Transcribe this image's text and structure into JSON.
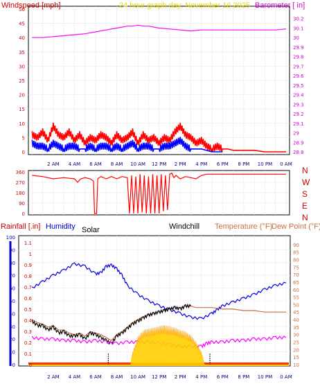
{
  "chart_data": [
    {
      "type": "line",
      "panel": "wind-baro",
      "title": "24 hour graph day:  November 16 2025",
      "left_label": "Windspeed [mph]",
      "right_label": "Barometer [ in]",
      "x_ticks": [
        "2 AM",
        "4 AM",
        "6 AM",
        "8 AM",
        "10 AM",
        "12 PM",
        "2 PM",
        "4 PM",
        "6 PM",
        "8 PM",
        "10 PM",
        "0 AM"
      ],
      "y_left_ticks": [
        "0",
        "5",
        "10",
        "15",
        "20",
        "25",
        "30",
        "35",
        "40",
        "45",
        "50"
      ],
      "y_left_range": [
        0,
        50
      ],
      "y_right_ticks": [
        "28.8",
        "28.9",
        "29",
        "29.1",
        "29.2",
        "29.3",
        "29.4",
        "29.5",
        "29.6",
        "29.7",
        "29.8",
        "29.9",
        "30",
        "30.1",
        "30.2"
      ],
      "y_right_range": [
        28.8,
        30.3
      ],
      "series": [
        {
          "name": "Barometer",
          "axis": "right",
          "color": "#ff00ff",
          "x": [
            0,
            1,
            2,
            3,
            4,
            5,
            6,
            7,
            8,
            8.5,
            9,
            9.5,
            10,
            10.5,
            11,
            12,
            13,
            14,
            15,
            16,
            17,
            18,
            19,
            20,
            21,
            22,
            23,
            24
          ],
          "y": [
            30.0,
            30.0,
            30.01,
            30.02,
            30.03,
            30.04,
            30.06,
            30.08,
            30.1,
            30.11,
            30.12,
            30.12,
            30.13,
            30.12,
            30.12,
            30.1,
            30.09,
            30.08,
            30.07,
            30.08,
            30.08,
            30.08,
            30.08,
            30.08,
            30.08,
            30.08,
            30.08,
            30.09
          ]
        },
        {
          "name": "Wind gust",
          "axis": "left",
          "color": "#ff0000",
          "x": [
            0,
            0.5,
            1,
            1.5,
            2,
            2.5,
            3,
            3.5,
            4,
            4.5,
            5,
            5.5,
            6,
            6.5,
            7,
            7.5,
            8,
            8.5,
            9,
            9.5,
            10,
            10.5,
            11,
            11.5,
            12,
            12.5,
            13,
            13.5,
            14,
            14.5,
            15,
            15.5,
            16,
            16.5,
            17,
            17.5,
            18,
            18.5,
            19,
            20,
            21,
            22,
            23,
            24
          ],
          "y": [
            6,
            5,
            7,
            4,
            9,
            6,
            5,
            7,
            4,
            6,
            3,
            5,
            4,
            6,
            5,
            3,
            6,
            4,
            5,
            7,
            3,
            6,
            4,
            5,
            3,
            5,
            4,
            7,
            9,
            6,
            5,
            3,
            4,
            2,
            1,
            2,
            1,
            1,
            0.5,
            0.5,
            0.5,
            0,
            0,
            0
          ]
        },
        {
          "name": "Windspeed",
          "axis": "left",
          "color": "#0000ff",
          "x": [
            0,
            0.5,
            1,
            1.5,
            2,
            2.5,
            3,
            3.5,
            4,
            4.5,
            5,
            5.5,
            6,
            6.5,
            7,
            7.5,
            8,
            8.5,
            9,
            9.5,
            10,
            10.5,
            11,
            11.5,
            12,
            12.5,
            13,
            13.5,
            14,
            14.5,
            15,
            15.5,
            16,
            16.5,
            17,
            17.5,
            18
          ],
          "y": [
            3,
            2,
            2,
            1,
            3,
            2,
            1,
            2,
            2,
            1,
            1,
            2,
            1,
            2,
            2,
            1,
            2,
            1,
            2,
            3,
            1,
            2,
            2,
            1,
            1,
            2,
            2,
            3,
            4,
            2,
            1,
            1,
            1,
            0.5,
            0,
            0,
            0
          ]
        }
      ]
    },
    {
      "type": "line",
      "panel": "wind-direction",
      "y_left_ticks": [
        "0",
        "90",
        "180",
        "270",
        "360"
      ],
      "y_range": [
        0,
        360
      ],
      "compass_labels": [
        "N",
        "W",
        "S",
        "E",
        "N"
      ],
      "series": [
        {
          "name": "Wind direction",
          "color": "#ff0000",
          "x": [
            0,
            1,
            2,
            3,
            4,
            4.3,
            4.6,
            5,
            5.5,
            5.8,
            5.9,
            6.1,
            6.2,
            6.5,
            7,
            7.5,
            8,
            8.5,
            9,
            9.2,
            9.4,
            9.6,
            9.8,
            10,
            10.2,
            10.4,
            10.6,
            10.8,
            11,
            11.2,
            11.4,
            11.6,
            11.8,
            12,
            12.2,
            12.4,
            12.6,
            12.8,
            13,
            13.2,
            13.4,
            13.6,
            14,
            14.5,
            15,
            15.5,
            16,
            16.5,
            17,
            18,
            20,
            22,
            24
          ],
          "y": [
            330,
            320,
            300,
            310,
            300,
            270,
            300,
            310,
            300,
            280,
            0,
            0,
            300,
            320,
            300,
            320,
            300,
            320,
            310,
            0,
            330,
            0,
            320,
            0,
            340,
            10,
            330,
            0,
            320,
            0,
            340,
            0,
            330,
            0,
            340,
            20,
            330,
            30,
            340,
            350,
            310,
            330,
            300,
            320,
            310,
            300,
            330,
            340,
            340,
            340,
            340,
            340,
            340
          ]
        }
      ]
    },
    {
      "type": "line",
      "panel": "temp-humidity",
      "labels": {
        "rainfall": "Rainfall [.in]",
        "humidity": "Humidity",
        "solar": "Solar",
        "windchill": "Windchill",
        "temperature": "Temperature (°F)",
        "dewpoint": "Dew Point (°F)"
      },
      "y_humidity_ticks": [
        "0",
        "10",
        "20",
        "30",
        "40",
        "50",
        "60",
        "70",
        "80",
        "90",
        "100"
      ],
      "y_rain_ticks": [
        "0",
        "0.1",
        "0.2",
        "0.3",
        "0.4",
        "0.5",
        "0.6",
        "0.7",
        "0.8",
        "0.9",
        "1",
        "1.1"
      ],
      "y_temp_ticks": [
        "10",
        "15",
        "20",
        "25",
        "30",
        "35",
        "40",
        "45",
        "50",
        "55",
        "60",
        "65",
        "70",
        "75",
        "80",
        "85",
        "90"
      ],
      "y_temp_range": [
        10,
        95
      ],
      "vertical_markers_hours": [
        7.2,
        16.8
      ],
      "series": [
        {
          "name": "Humidity",
          "color": "#0000dd",
          "axis": "humidity",
          "x": [
            0,
            1,
            2,
            3,
            4,
            5,
            6,
            6.5,
            7,
            7.5,
            8,
            8.5,
            9,
            10,
            11,
            12,
            13,
            14,
            15,
            16,
            17,
            17.5,
            18,
            19,
            20,
            21,
            22,
            23,
            24
          ],
          "y": [
            60,
            65,
            70,
            74,
            79,
            77,
            71,
            72,
            77,
            78,
            75,
            70,
            62,
            55,
            50,
            46,
            43,
            40,
            37,
            36,
            40,
            43,
            46,
            49,
            52,
            55,
            59,
            62,
            64
          ]
        },
        {
          "name": "Temperature",
          "color": "#c87040",
          "axis": "temp",
          "x": [
            0,
            0.5,
            1,
            1.5,
            2,
            2.5,
            3,
            3.5,
            4,
            4.5,
            5,
            5.5,
            6,
            6.5,
            7,
            7.5,
            8,
            8.5,
            9,
            9.5,
            10,
            10.5,
            11,
            11.5,
            12,
            12.5,
            13,
            13.5,
            14,
            14.5,
            15,
            15.5,
            16,
            17,
            18,
            19,
            20,
            21,
            22,
            23,
            24
          ],
          "y": [
            40,
            38,
            37,
            35,
            36,
            33,
            33,
            31,
            30,
            31,
            29,
            32,
            31,
            30,
            28,
            26,
            30,
            32,
            35,
            38,
            40,
            42,
            43,
            44,
            45,
            46,
            47,
            48,
            48,
            49,
            49,
            48,
            48,
            48,
            47,
            47,
            46,
            46,
            45,
            45,
            45
          ]
        },
        {
          "name": "Windchill",
          "color": "#000000",
          "axis": "temp",
          "x": [
            0,
            0.5,
            1,
            1.5,
            2,
            2.5,
            3,
            3.5,
            4,
            4.5,
            5,
            5.5,
            6,
            6.5,
            7,
            7.5,
            8,
            8.5,
            9,
            9.5,
            10,
            10.5,
            11,
            11.5,
            12,
            12.5,
            13,
            13.5,
            14,
            14.5,
            15
          ],
          "y": [
            39,
            36,
            36,
            33,
            35,
            31,
            32,
            29,
            29,
            30,
            27,
            31,
            30,
            28,
            26,
            24,
            29,
            31,
            34,
            37,
            39,
            41,
            43,
            44,
            45,
            46,
            47,
            48,
            47,
            49,
            49
          ]
        },
        {
          "name": "Dew Point",
          "color": "#ff00ff",
          "axis": "temp",
          "x": [
            0,
            1,
            2,
            3,
            4,
            5,
            6,
            7,
            8,
            9,
            10,
            11,
            12,
            13,
            14,
            15,
            16,
            16.5,
            17,
            18,
            19,
            20,
            21,
            22,
            23,
            24
          ],
          "y": [
            28,
            27,
            27,
            26,
            26,
            25,
            26,
            25,
            24,
            25,
            25,
            25,
            24,
            23,
            22,
            22,
            22,
            24,
            25,
            25,
            26,
            26,
            27,
            27,
            28,
            28
          ]
        },
        {
          "name": "Solar",
          "color": "#ffd000",
          "axis": "humidity",
          "type": "area",
          "x": [
            9.3,
            9.5,
            10,
            10.5,
            11,
            11.5,
            12,
            12.5,
            13,
            13.5,
            14,
            14.5,
            15,
            15.5,
            16,
            16.3
          ],
          "y": [
            0,
            10,
            22,
            27,
            28,
            29,
            30,
            31,
            30,
            29,
            27,
            26,
            23,
            18,
            10,
            0
          ]
        }
      ]
    }
  ]
}
